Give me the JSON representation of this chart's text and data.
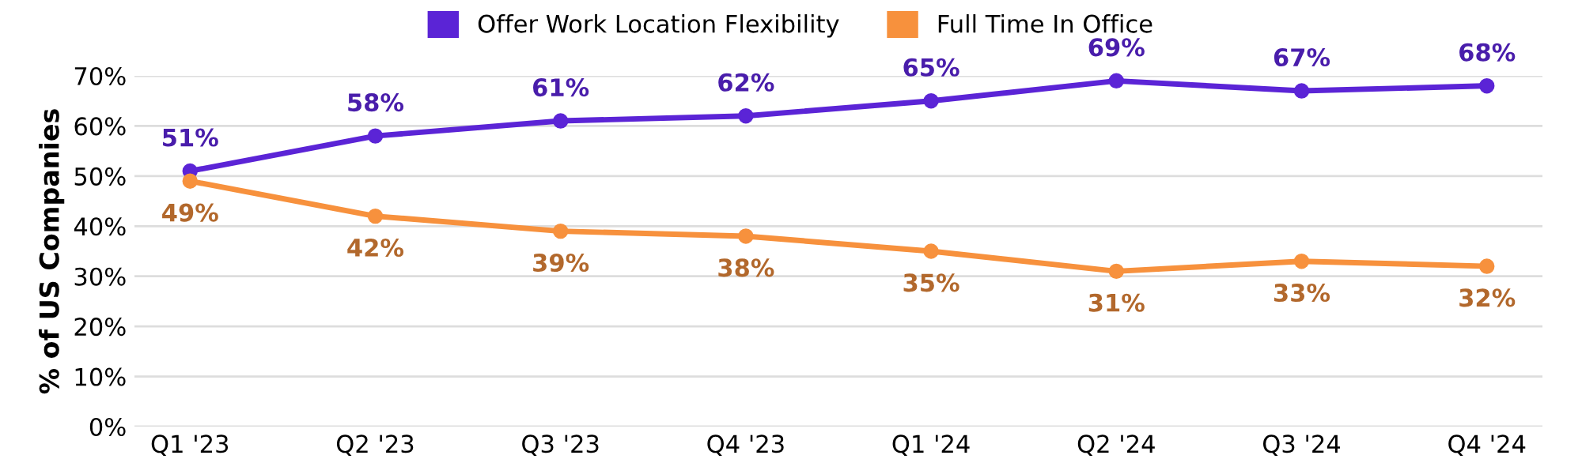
{
  "chart_data": {
    "type": "line",
    "ylabel": "% of US Companies",
    "categories": [
      "Q1 '23",
      "Q2 '23",
      "Q3 '23",
      "Q4 '23",
      "Q1 '24",
      "Q2 '24",
      "Q3 '24",
      "Q4 '24"
    ],
    "series": [
      {
        "name": "Offer Work Location Flexibility",
        "color": "#5b24d6",
        "values": [
          51,
          58,
          61,
          62,
          65,
          69,
          67,
          68
        ],
        "value_labels": [
          "51%",
          "58%",
          "61%",
          "62%",
          "65%",
          "69%",
          "67%",
          "68%"
        ]
      },
      {
        "name": "Full Time In Office",
        "color": "#f7913d",
        "values": [
          49,
          42,
          39,
          38,
          35,
          31,
          33,
          32
        ],
        "value_labels": [
          "49%",
          "42%",
          "39%",
          "38%",
          "35%",
          "31%",
          "33%",
          "32%"
        ]
      }
    ],
    "ylim": [
      0,
      70
    ],
    "yticks": [
      {
        "value": 0,
        "label": "0%"
      },
      {
        "value": 10,
        "label": "10%"
      },
      {
        "value": 20,
        "label": "20%"
      },
      {
        "value": 30,
        "label": "30%"
      },
      {
        "value": 40,
        "label": "40%"
      },
      {
        "value": 50,
        "label": "50%"
      },
      {
        "value": 60,
        "label": "60%"
      },
      {
        "value": 70,
        "label": "70%"
      }
    ],
    "grid": "y",
    "legend": "top",
    "marker": "circle",
    "line_style": "solid",
    "data_labels": false
  }
}
